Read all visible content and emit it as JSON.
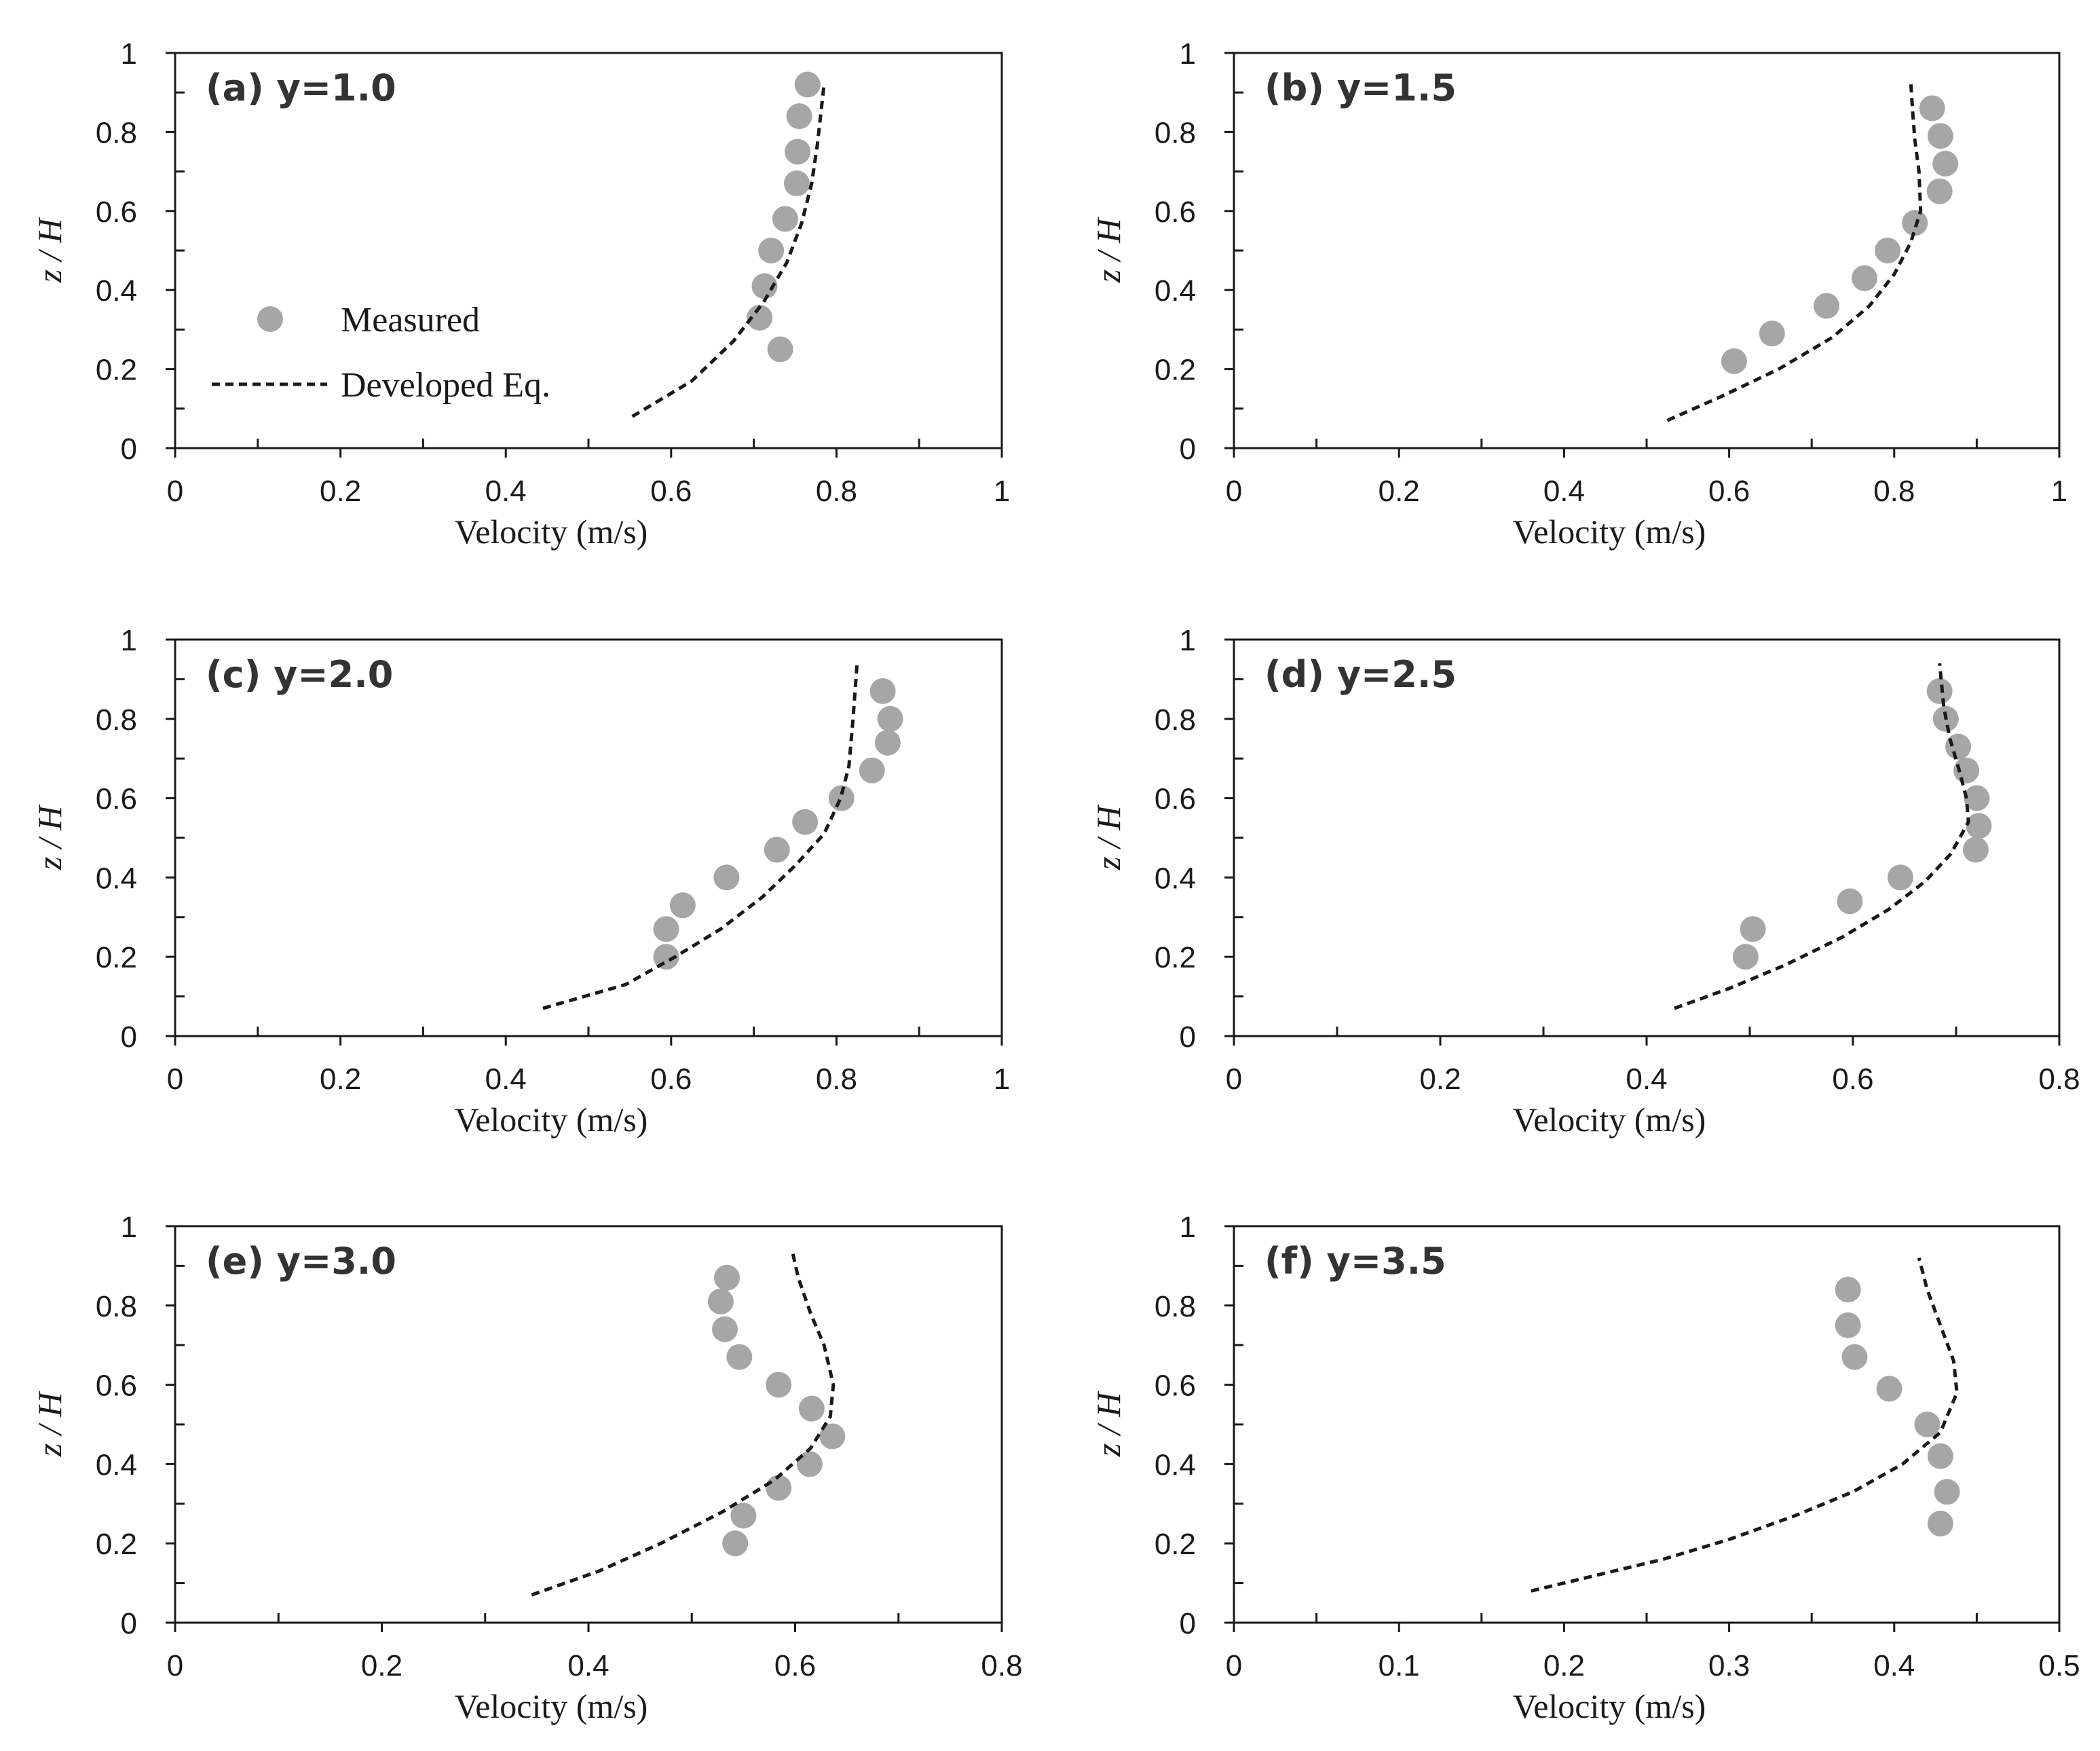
{
  "colors": {
    "measured": "#a6a6a6",
    "model": "#1a1a1a",
    "axis": "#1a1a1a"
  },
  "legend": {
    "measured_label": "Measured",
    "model_label": "Developed Eq."
  },
  "chart_data": [
    {
      "type": "scatter",
      "title": "(a) y=1.0",
      "xlabel": "Velocity (m/s)",
      "ylabel": "z / H",
      "xlim": [
        0,
        1
      ],
      "ylim": [
        0,
        1
      ],
      "xticks": [
        0,
        0.2,
        0.4,
        0.6,
        0.8,
        1
      ],
      "xtick_labels": [
        "0",
        "0.2",
        "0.4",
        "0.6",
        "0.8",
        "1"
      ],
      "xminor": [
        0.1,
        0.3,
        0.5,
        0.7,
        0.9
      ],
      "yticks": [
        0,
        0.2,
        0.4,
        0.6,
        0.8,
        1
      ],
      "ytick_labels": [
        "0",
        "0.2",
        "0.4",
        "0.6",
        "0.8",
        "1"
      ],
      "yminor": [
        0.1,
        0.3,
        0.5,
        0.7,
        0.9
      ],
      "series": [
        {
          "name": "Measured",
          "kind": "points",
          "x": [
            0.765,
            0.755,
            0.753,
            0.752,
            0.738,
            0.721,
            0.713,
            0.707,
            0.732
          ],
          "y": [
            0.92,
            0.84,
            0.75,
            0.67,
            0.58,
            0.5,
            0.41,
            0.33,
            0.25
          ]
        },
        {
          "name": "Developed Eq.",
          "kind": "line",
          "x": [
            0.553,
            0.585,
            0.625,
            0.675,
            0.712,
            0.74,
            0.758,
            0.77,
            0.777,
            0.785
          ],
          "y": [
            0.08,
            0.12,
            0.17,
            0.27,
            0.37,
            0.47,
            0.57,
            0.67,
            0.77,
            0.92
          ]
        }
      ]
    },
    {
      "type": "scatter",
      "title": "(b) y=1.5",
      "xlabel": "Velocity (m/s)",
      "ylabel": "z / H",
      "xlim": [
        0,
        1
      ],
      "ylim": [
        0,
        1
      ],
      "xticks": [
        0,
        0.2,
        0.4,
        0.6,
        0.8,
        1
      ],
      "xtick_labels": [
        "0",
        "0.2",
        "0.4",
        "0.6",
        "0.8",
        "1"
      ],
      "xminor": [
        0.1,
        0.3,
        0.5,
        0.7,
        0.9
      ],
      "yticks": [
        0,
        0.2,
        0.4,
        0.6,
        0.8,
        1
      ],
      "ytick_labels": [
        "0",
        "0.2",
        "0.4",
        "0.6",
        "0.8",
        "1"
      ],
      "yminor": [
        0.1,
        0.3,
        0.5,
        0.7,
        0.9
      ],
      "series": [
        {
          "name": "Measured",
          "kind": "points",
          "x": [
            0.846,
            0.856,
            0.862,
            0.855,
            0.825,
            0.792,
            0.764,
            0.718,
            0.652,
            0.606
          ],
          "y": [
            0.86,
            0.79,
            0.72,
            0.65,
            0.57,
            0.5,
            0.43,
            0.36,
            0.29,
            0.22
          ]
        },
        {
          "name": "Developed Eq.",
          "kind": "line",
          "x": [
            0.525,
            0.59,
            0.66,
            0.725,
            0.77,
            0.8,
            0.82,
            0.832,
            0.83,
            0.825,
            0.822,
            0.82
          ],
          "y": [
            0.07,
            0.13,
            0.2,
            0.28,
            0.36,
            0.44,
            0.52,
            0.6,
            0.7,
            0.78,
            0.86,
            0.93
          ]
        }
      ]
    },
    {
      "type": "scatter",
      "title": "(c) y=2.0",
      "xlabel": "Velocity (m/s)",
      "ylabel": "z / H",
      "xlim": [
        0,
        1
      ],
      "ylim": [
        0,
        1
      ],
      "xticks": [
        0,
        0.2,
        0.4,
        0.6,
        0.8,
        1
      ],
      "xtick_labels": [
        "0",
        "0.2",
        "0.4",
        "0.6",
        "0.8",
        "1"
      ],
      "xminor": [
        0.1,
        0.3,
        0.5,
        0.7,
        0.9
      ],
      "yticks": [
        0,
        0.2,
        0.4,
        0.6,
        0.8,
        1
      ],
      "ytick_labels": [
        "0",
        "0.2",
        "0.4",
        "0.6",
        "0.8",
        "1"
      ],
      "yminor": [
        0.1,
        0.3,
        0.5,
        0.7,
        0.9
      ],
      "series": [
        {
          "name": "Measured",
          "kind": "points",
          "x": [
            0.856,
            0.865,
            0.862,
            0.843,
            0.806,
            0.762,
            0.728,
            0.667,
            0.614,
            0.594,
            0.594
          ],
          "y": [
            0.87,
            0.8,
            0.74,
            0.67,
            0.6,
            0.54,
            0.47,
            0.4,
            0.33,
            0.27,
            0.2
          ]
        },
        {
          "name": "Developed Eq.",
          "kind": "line",
          "x": [
            0.445,
            0.495,
            0.545,
            0.605,
            0.66,
            0.71,
            0.75,
            0.785,
            0.805,
            0.815,
            0.82,
            0.825
          ],
          "y": [
            0.07,
            0.1,
            0.13,
            0.2,
            0.27,
            0.35,
            0.43,
            0.51,
            0.6,
            0.68,
            0.8,
            0.94
          ]
        }
      ]
    },
    {
      "type": "scatter",
      "title": "(d) y=2.5",
      "xlabel": "Velocity (m/s)",
      "ylabel": "z / H",
      "xlim": [
        0,
        0.8
      ],
      "ylim": [
        0,
        1
      ],
      "xticks": [
        0,
        0.2,
        0.4,
        0.6,
        0.8
      ],
      "xtick_labels": [
        "0",
        "0.2",
        "0.4",
        "0.6",
        "0.8"
      ],
      "xminor": [
        0.1,
        0.3,
        0.5,
        0.7
      ],
      "yticks": [
        0,
        0.2,
        0.4,
        0.6,
        0.8,
        1
      ],
      "ytick_labels": [
        "0",
        "0.2",
        "0.4",
        "0.6",
        "0.8",
        "1"
      ],
      "yminor": [
        0.1,
        0.3,
        0.5,
        0.7,
        0.9
      ],
      "series": [
        {
          "name": "Measured",
          "kind": "points",
          "x": [
            0.684,
            0.69,
            0.702,
            0.71,
            0.72,
            0.722,
            0.719,
            0.646,
            0.597,
            0.503,
            0.496
          ],
          "y": [
            0.87,
            0.8,
            0.73,
            0.67,
            0.6,
            0.53,
            0.47,
            0.4,
            0.34,
            0.27,
            0.2
          ]
        },
        {
          "name": "Developed Eq.",
          "kind": "line",
          "x": [
            0.427,
            0.48,
            0.535,
            0.59,
            0.635,
            0.67,
            0.695,
            0.712,
            0.71,
            0.703,
            0.694,
            0.688,
            0.684
          ],
          "y": [
            0.07,
            0.12,
            0.18,
            0.25,
            0.32,
            0.39,
            0.46,
            0.54,
            0.6,
            0.67,
            0.75,
            0.83,
            0.94
          ]
        }
      ]
    },
    {
      "type": "scatter",
      "title": "(e) y=3.0",
      "xlabel": "Velocity (m/s)",
      "ylabel": "z / H",
      "xlim": [
        0,
        0.8
      ],
      "ylim": [
        0,
        1
      ],
      "xticks": [
        0,
        0.2,
        0.4,
        0.6,
        0.8
      ],
      "xtick_labels": [
        "0",
        "0.2",
        "0.4",
        "0.6",
        "0.8"
      ],
      "xminor": [
        0.1,
        0.3,
        0.5,
        0.7
      ],
      "yticks": [
        0,
        0.2,
        0.4,
        0.6,
        0.8,
        1
      ],
      "ytick_labels": [
        "0",
        "0.2",
        "0.4",
        "0.6",
        "0.8",
        "1"
      ],
      "yminor": [
        0.1,
        0.3,
        0.5,
        0.7,
        0.9
      ],
      "series": [
        {
          "name": "Measured",
          "kind": "points",
          "x": [
            0.534,
            0.528,
            0.532,
            0.546,
            0.584,
            0.616,
            0.636,
            0.614,
            0.584,
            0.55,
            0.542
          ],
          "y": [
            0.87,
            0.81,
            0.74,
            0.67,
            0.6,
            0.54,
            0.47,
            0.4,
            0.34,
            0.27,
            0.2
          ]
        },
        {
          "name": "Developed Eq.",
          "kind": "line",
          "x": [
            0.345,
            0.41,
            0.47,
            0.53,
            0.58,
            0.615,
            0.634,
            0.637,
            0.628,
            0.615,
            0.603,
            0.597
          ],
          "y": [
            0.07,
            0.13,
            0.2,
            0.28,
            0.36,
            0.44,
            0.52,
            0.6,
            0.7,
            0.78,
            0.87,
            0.94
          ]
        }
      ]
    },
    {
      "type": "scatter",
      "title": "(f) y=3.5",
      "xlabel": "Velocity (m/s)",
      "ylabel": "z / H",
      "xlim": [
        0,
        0.5
      ],
      "ylim": [
        0,
        1
      ],
      "xticks": [
        0,
        0.1,
        0.2,
        0.3,
        0.4,
        0.5
      ],
      "xtick_labels": [
        "0",
        "0.1",
        "0.2",
        "0.3",
        "0.4",
        "0.5"
      ],
      "xminor": [
        0.05,
        0.15,
        0.25,
        0.35,
        0.45
      ],
      "yticks": [
        0,
        0.2,
        0.4,
        0.6,
        0.8,
        1
      ],
      "ytick_labels": [
        "0",
        "0.2",
        "0.4",
        "0.6",
        "0.8",
        "1"
      ],
      "yminor": [
        0.1,
        0.3,
        0.5,
        0.7,
        0.9
      ],
      "series": [
        {
          "name": "Measured",
          "kind": "points",
          "x": [
            0.372,
            0.372,
            0.376,
            0.397,
            0.42,
            0.428,
            0.432,
            0.428
          ],
          "y": [
            0.84,
            0.75,
            0.67,
            0.59,
            0.5,
            0.42,
            0.33,
            0.25
          ]
        },
        {
          "name": "Developed Eq.",
          "kind": "line",
          "x": [
            0.18,
            0.22,
            0.26,
            0.3,
            0.34,
            0.375,
            0.405,
            0.428,
            0.438,
            0.436,
            0.428,
            0.42,
            0.415
          ],
          "y": [
            0.08,
            0.12,
            0.16,
            0.21,
            0.27,
            0.33,
            0.4,
            0.48,
            0.58,
            0.66,
            0.75,
            0.84,
            0.92
          ]
        }
      ]
    }
  ]
}
